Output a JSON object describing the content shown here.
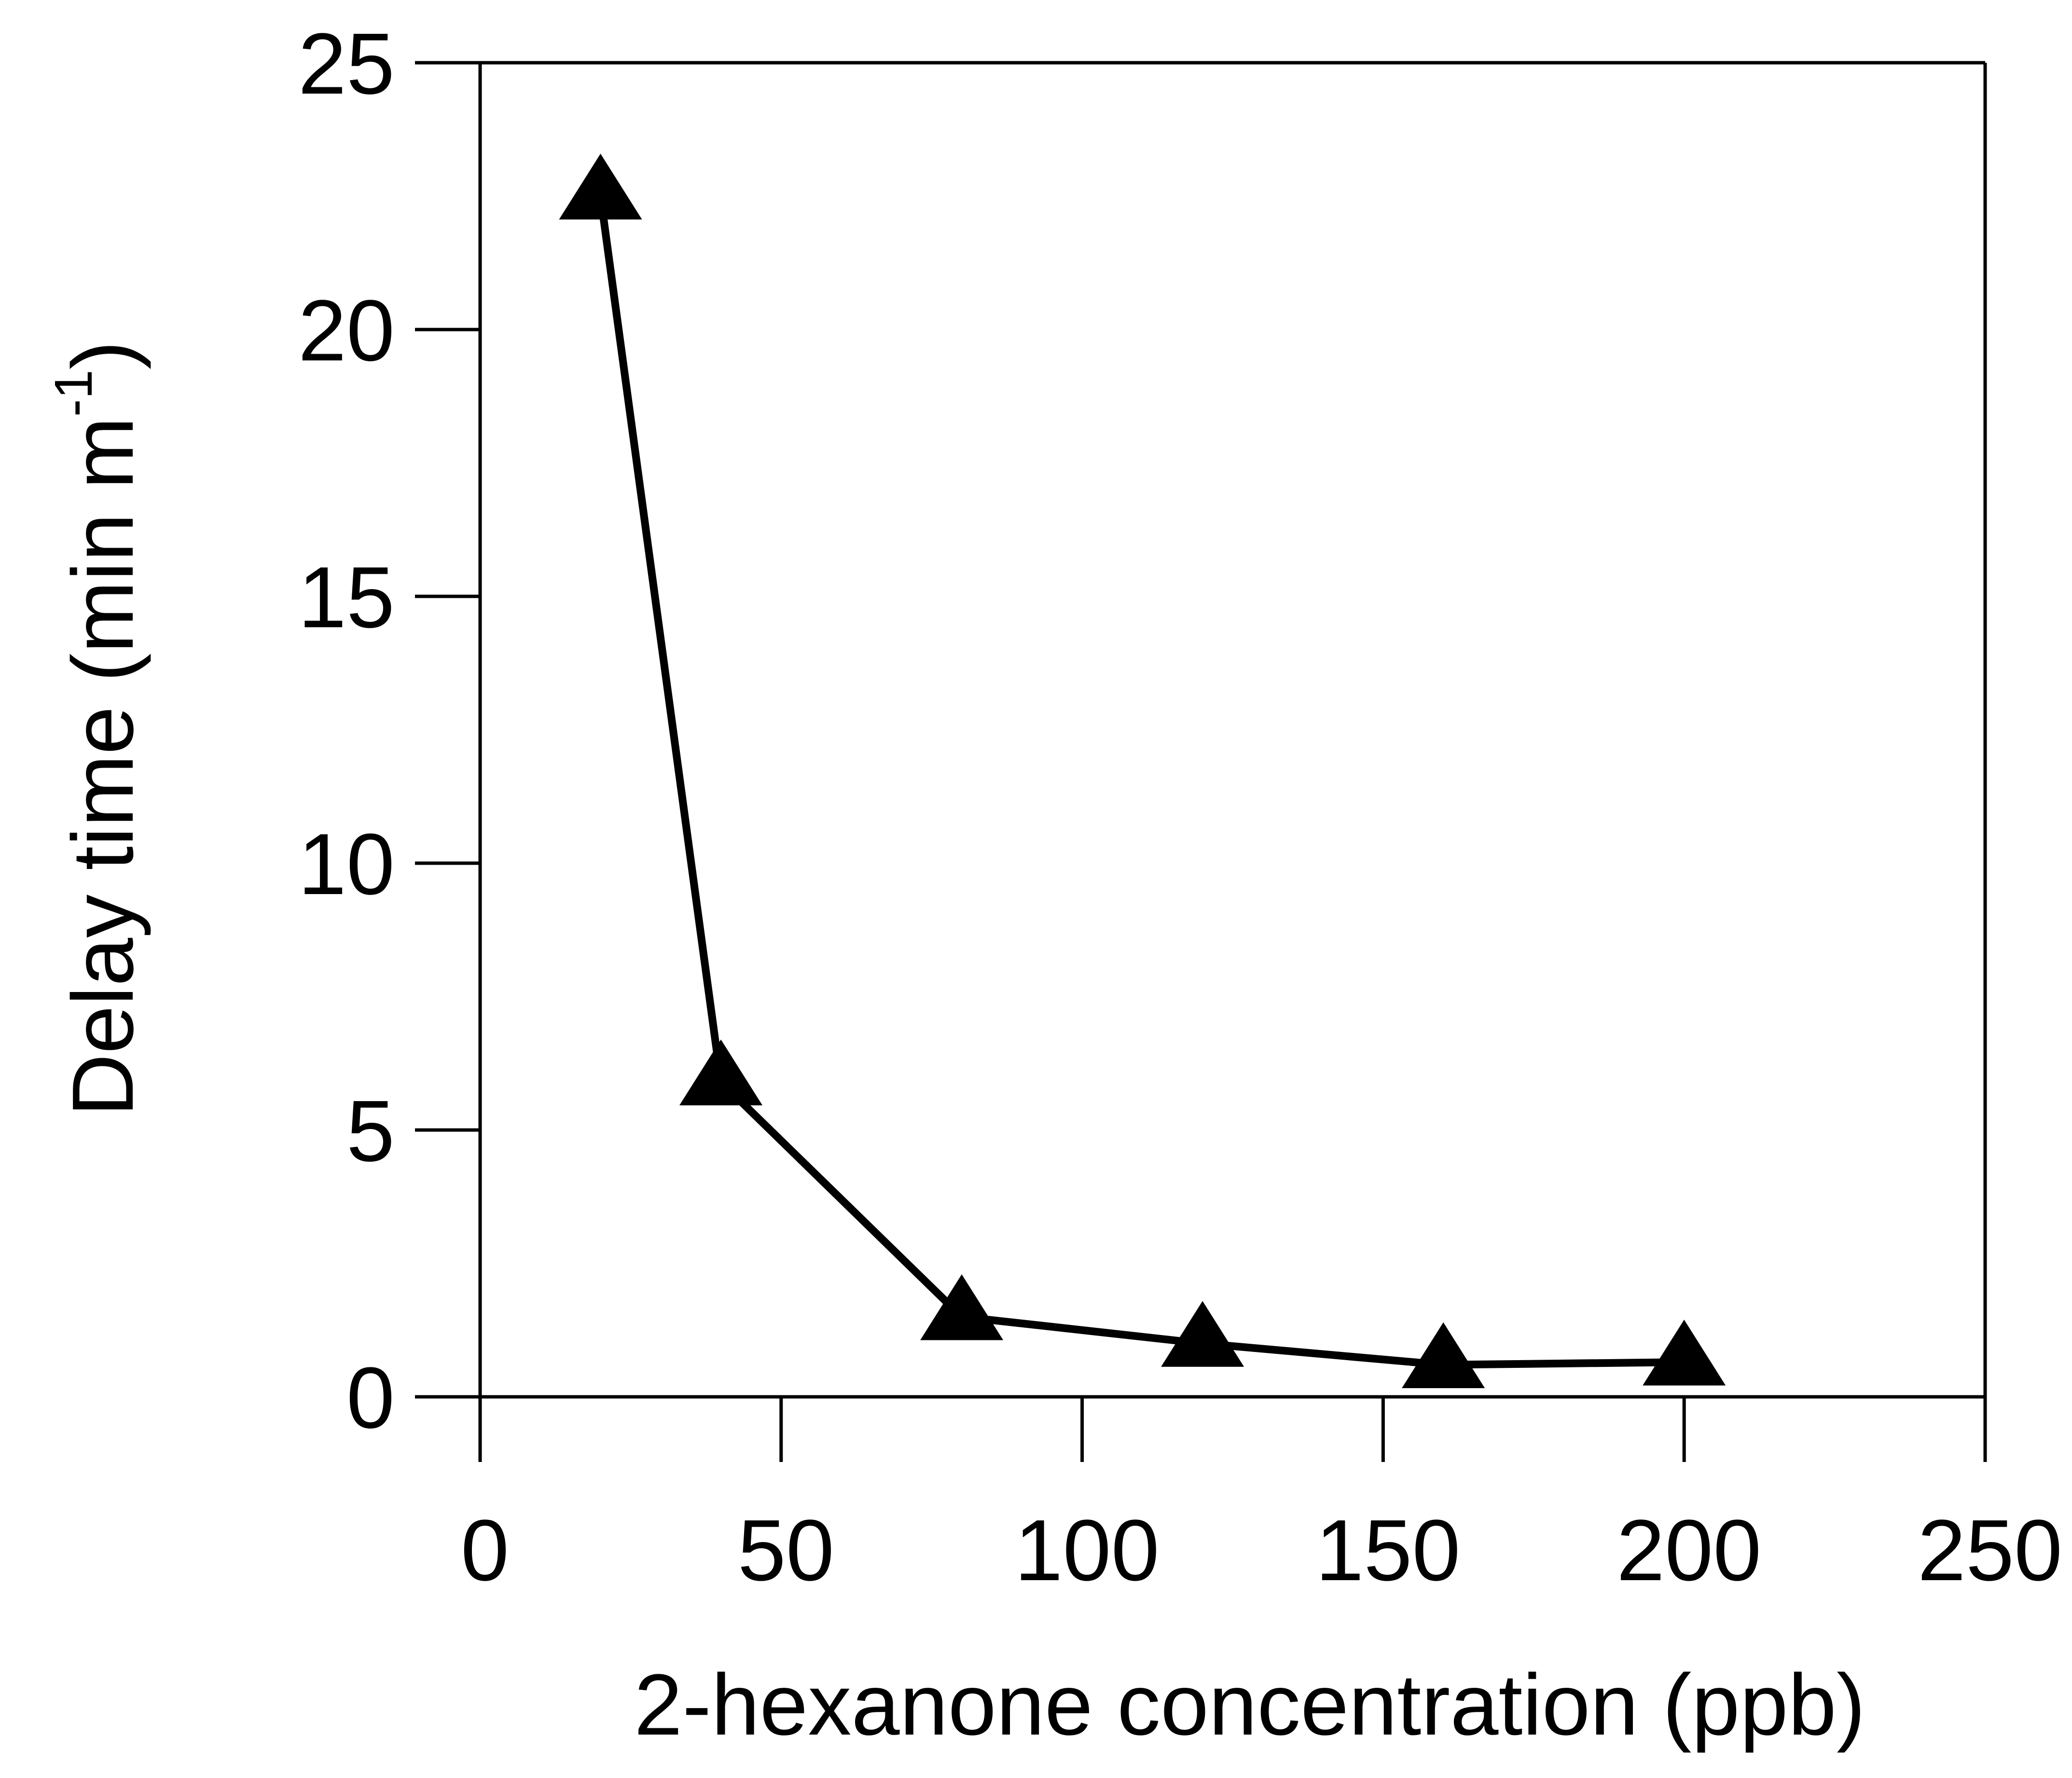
{
  "chart_data": {
    "type": "line",
    "xlabel": "2-hexanone concentration (ppb)",
    "ylabel": {
      "main": "Delay time (min m",
      "superscript": "-1",
      "close": ")"
    },
    "xlim": [
      0,
      250
    ],
    "ylim": [
      0,
      25
    ],
    "xticks": [
      0,
      50,
      100,
      150,
      200,
      250
    ],
    "yticks": [
      0,
      5,
      10,
      15,
      20,
      25
    ],
    "marker": "filled-triangle",
    "line_color": "#000000",
    "grid": false,
    "legend": "none",
    "series": [
      {
        "x": [
          20,
          40,
          80,
          120,
          160,
          200
        ],
        "y": [
          22.5,
          5.9,
          1.5,
          1.0,
          0.6,
          0.65
        ]
      }
    ]
  }
}
